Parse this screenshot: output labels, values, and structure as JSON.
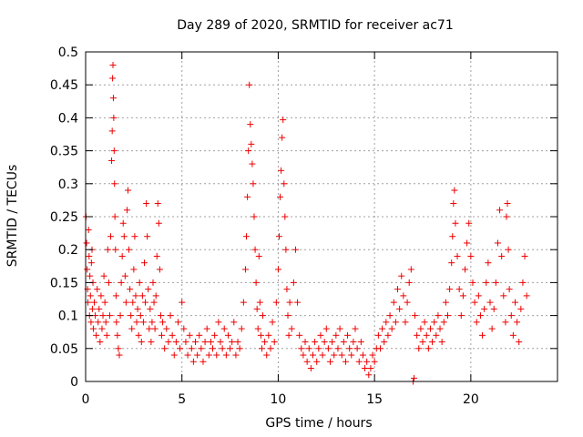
{
  "chart_data": {
    "type": "scatter",
    "title": "Day 289 of 2020, SRMTID for receiver ac71",
    "xlabel": "GPS time / hours",
    "ylabel": "SRMTID / TECUs",
    "xlim": [
      0,
      24.5
    ],
    "ylim": [
      0,
      0.5
    ],
    "xticks": [
      0,
      5,
      10,
      15,
      20
    ],
    "xtick_labels": [
      "0",
      "5",
      "10",
      "15",
      "20"
    ],
    "yticks": [
      0,
      0.05,
      0.1,
      0.15,
      0.2,
      0.25,
      0.3,
      0.35,
      0.4,
      0.45,
      0.5
    ],
    "ytick_labels": [
      "0",
      "0.05",
      "0.1",
      "0.15",
      "0.2",
      "0.25",
      "0.3",
      "0.35",
      "0.4",
      "0.45",
      "0.5"
    ],
    "grid": true,
    "marker": "plus",
    "color": "#ee0000",
    "series": [
      {
        "name": "SRMTID",
        "points": [
          [
            0.02,
            0.25
          ],
          [
            0.05,
            0.21
          ],
          [
            0.08,
            0.17
          ],
          [
            0.1,
            0.14
          ],
          [
            0.12,
            0.12
          ],
          [
            0.15,
            0.23
          ],
          [
            0.18,
            0.19
          ],
          [
            0.2,
            0.1
          ],
          [
            0.22,
            0.16
          ],
          [
            0.25,
            0.13
          ],
          [
            0.28,
            0.09
          ],
          [
            0.3,
            0.18
          ],
          [
            0.33,
            0.2
          ],
          [
            0.35,
            0.11
          ],
          [
            0.38,
            0.15
          ],
          [
            0.4,
            0.08
          ],
          [
            0.45,
            0.12
          ],
          [
            0.5,
            0.1
          ],
          [
            0.55,
            0.07
          ],
          [
            0.6,
            0.14
          ],
          [
            0.65,
            0.09
          ],
          [
            0.7,
            0.11
          ],
          [
            0.75,
            0.06
          ],
          [
            0.8,
            0.13
          ],
          [
            0.85,
            0.08
          ],
          [
            0.9,
            0.1
          ],
          [
            0.95,
            0.16
          ],
          [
            1.0,
            0.12
          ],
          [
            1.05,
            0.09
          ],
          [
            1.1,
            0.07
          ],
          [
            1.15,
            0.2
          ],
          [
            1.2,
            0.15
          ],
          [
            1.25,
            0.1
          ],
          [
            1.3,
            0.22
          ],
          [
            1.35,
            0.335
          ],
          [
            1.38,
            0.38
          ],
          [
            1.4,
            0.46
          ],
          [
            1.42,
            0.48
          ],
          [
            1.44,
            0.43
          ],
          [
            1.46,
            0.4
          ],
          [
            1.48,
            0.35
          ],
          [
            1.5,
            0.3
          ],
          [
            1.52,
            0.25
          ],
          [
            1.55,
            0.2
          ],
          [
            1.58,
            0.13
          ],
          [
            1.6,
            0.09
          ],
          [
            1.65,
            0.07
          ],
          [
            1.7,
            0.05
          ],
          [
            1.75,
            0.04
          ],
          [
            1.8,
            0.1
          ],
          [
            1.85,
            0.15
          ],
          [
            1.9,
            0.19
          ],
          [
            1.95,
            0.24
          ],
          [
            2.0,
            0.22
          ],
          [
            2.05,
            0.16
          ],
          [
            2.1,
            0.12
          ],
          [
            2.15,
            0.26
          ],
          [
            2.2,
            0.29
          ],
          [
            2.25,
            0.2
          ],
          [
            2.3,
            0.14
          ],
          [
            2.35,
            0.1
          ],
          [
            2.4,
            0.08
          ],
          [
            2.45,
            0.12
          ],
          [
            2.5,
            0.17
          ],
          [
            2.55,
            0.22
          ],
          [
            2.6,
            0.13
          ],
          [
            2.65,
            0.09
          ],
          [
            2.7,
            0.11
          ],
          [
            2.75,
            0.07
          ],
          [
            2.8,
            0.15
          ],
          [
            2.85,
            0.1
          ],
          [
            2.9,
            0.06
          ],
          [
            2.95,
            0.13
          ],
          [
            3.0,
            0.09
          ],
          [
            3.05,
            0.18
          ],
          [
            3.1,
            0.12
          ],
          [
            3.15,
            0.27
          ],
          [
            3.2,
            0.22
          ],
          [
            3.25,
            0.14
          ],
          [
            3.3,
            0.08
          ],
          [
            3.35,
            0.11
          ],
          [
            3.4,
            0.06
          ],
          [
            3.45,
            0.09
          ],
          [
            3.5,
            0.15
          ],
          [
            3.55,
            0.12
          ],
          [
            3.6,
            0.08
          ],
          [
            3.65,
            0.13
          ],
          [
            3.7,
            0.19
          ],
          [
            3.75,
            0.27
          ],
          [
            3.8,
            0.24
          ],
          [
            3.85,
            0.17
          ],
          [
            3.9,
            0.1
          ],
          [
            3.95,
            0.07
          ],
          [
            4.0,
            0.09
          ],
          [
            4.1,
            0.05
          ],
          [
            4.2,
            0.08
          ],
          [
            4.3,
            0.06
          ],
          [
            4.4,
            0.1
          ],
          [
            4.5,
            0.07
          ],
          [
            4.6,
            0.04
          ],
          [
            4.7,
            0.06
          ],
          [
            4.8,
            0.09
          ],
          [
            4.9,
            0.05
          ],
          [
            5.0,
            0.12
          ],
          [
            5.1,
            0.08
          ],
          [
            5.2,
            0.06
          ],
          [
            5.3,
            0.04
          ],
          [
            5.4,
            0.07
          ],
          [
            5.5,
            0.05
          ],
          [
            5.6,
            0.03
          ],
          [
            5.7,
            0.06
          ],
          [
            5.8,
            0.04
          ],
          [
            5.9,
            0.07
          ],
          [
            6.0,
            0.05
          ],
          [
            6.1,
            0.03
          ],
          [
            6.2,
            0.06
          ],
          [
            6.3,
            0.08
          ],
          [
            6.4,
            0.04
          ],
          [
            6.5,
            0.06
          ],
          [
            6.6,
            0.05
          ],
          [
            6.7,
            0.07
          ],
          [
            6.8,
            0.04
          ],
          [
            6.9,
            0.09
          ],
          [
            7.0,
            0.06
          ],
          [
            7.1,
            0.05
          ],
          [
            7.2,
            0.08
          ],
          [
            7.3,
            0.04
          ],
          [
            7.4,
            0.07
          ],
          [
            7.5,
            0.05
          ],
          [
            7.6,
            0.06
          ],
          [
            7.7,
            0.09
          ],
          [
            7.8,
            0.04
          ],
          [
            7.9,
            0.06
          ],
          [
            8.0,
            0.05
          ],
          [
            8.1,
            0.08
          ],
          [
            8.2,
            0.12
          ],
          [
            8.3,
            0.17
          ],
          [
            8.35,
            0.22
          ],
          [
            8.4,
            0.28
          ],
          [
            8.45,
            0.35
          ],
          [
            8.5,
            0.45
          ],
          [
            8.55,
            0.39
          ],
          [
            8.6,
            0.36
          ],
          [
            8.65,
            0.33
          ],
          [
            8.7,
            0.3
          ],
          [
            8.75,
            0.25
          ],
          [
            8.8,
            0.2
          ],
          [
            8.85,
            0.15
          ],
          [
            8.9,
            0.11
          ],
          [
            8.95,
            0.08
          ],
          [
            9.0,
            0.19
          ],
          [
            9.05,
            0.12
          ],
          [
            9.1,
            0.07
          ],
          [
            9.15,
            0.05
          ],
          [
            9.2,
            0.1
          ],
          [
            9.3,
            0.06
          ],
          [
            9.4,
            0.04
          ],
          [
            9.5,
            0.07
          ],
          [
            9.6,
            0.05
          ],
          [
            9.7,
            0.09
          ],
          [
            9.8,
            0.06
          ],
          [
            9.9,
            0.12
          ],
          [
            10.0,
            0.17
          ],
          [
            10.05,
            0.22
          ],
          [
            10.1,
            0.28
          ],
          [
            10.15,
            0.32
          ],
          [
            10.2,
            0.37
          ],
          [
            10.25,
            0.397
          ],
          [
            10.3,
            0.3
          ],
          [
            10.35,
            0.25
          ],
          [
            10.4,
            0.2
          ],
          [
            10.45,
            0.14
          ],
          [
            10.5,
            0.1
          ],
          [
            10.55,
            0.07
          ],
          [
            10.6,
            0.12
          ],
          [
            10.7,
            0.08
          ],
          [
            10.8,
            0.15
          ],
          [
            10.9,
            0.2
          ],
          [
            11.0,
            0.12
          ],
          [
            11.1,
            0.07
          ],
          [
            11.2,
            0.05
          ],
          [
            11.3,
            0.04
          ],
          [
            11.4,
            0.06
          ],
          [
            11.5,
            0.03
          ],
          [
            11.6,
            0.05
          ],
          [
            11.7,
            0.02
          ],
          [
            11.8,
            0.04
          ],
          [
            11.9,
            0.06
          ],
          [
            12.0,
            0.03
          ],
          [
            12.1,
            0.05
          ],
          [
            12.2,
            0.07
          ],
          [
            12.3,
            0.04
          ],
          [
            12.4,
            0.06
          ],
          [
            12.5,
            0.08
          ],
          [
            12.6,
            0.05
          ],
          [
            12.7,
            0.03
          ],
          [
            12.8,
            0.06
          ],
          [
            12.9,
            0.04
          ],
          [
            13.0,
            0.07
          ],
          [
            13.1,
            0.05
          ],
          [
            13.2,
            0.08
          ],
          [
            13.3,
            0.04
          ],
          [
            13.4,
            0.06
          ],
          [
            13.5,
            0.03
          ],
          [
            13.6,
            0.07
          ],
          [
            13.7,
            0.05
          ],
          [
            13.8,
            0.04
          ],
          [
            13.9,
            0.06
          ],
          [
            14.0,
            0.08
          ],
          [
            14.1,
            0.05
          ],
          [
            14.2,
            0.03
          ],
          [
            14.3,
            0.06
          ],
          [
            14.4,
            0.04
          ],
          [
            14.5,
            0.02
          ],
          [
            14.6,
            0.03
          ],
          [
            14.7,
            0.01
          ],
          [
            14.8,
            0.02
          ],
          [
            14.9,
            0.04
          ],
          [
            15.0,
            0.03
          ],
          [
            15.1,
            0.05
          ],
          [
            15.2,
            0.07
          ],
          [
            15.3,
            0.05
          ],
          [
            15.4,
            0.08
          ],
          [
            15.5,
            0.06
          ],
          [
            15.6,
            0.09
          ],
          [
            15.7,
            0.07
          ],
          [
            15.8,
            0.1
          ],
          [
            15.9,
            0.08
          ],
          [
            16.0,
            0.12
          ],
          [
            16.1,
            0.09
          ],
          [
            16.2,
            0.14
          ],
          [
            16.3,
            0.11
          ],
          [
            16.4,
            0.16
          ],
          [
            16.5,
            0.13
          ],
          [
            16.6,
            0.09
          ],
          [
            16.7,
            0.12
          ],
          [
            16.8,
            0.15
          ],
          [
            16.9,
            0.17
          ],
          [
            17.0,
            0.0
          ],
          [
            17.05,
            0.005
          ],
          [
            17.1,
            0.1
          ],
          [
            17.2,
            0.07
          ],
          [
            17.3,
            0.05
          ],
          [
            17.4,
            0.08
          ],
          [
            17.5,
            0.06
          ],
          [
            17.6,
            0.09
          ],
          [
            17.7,
            0.07
          ],
          [
            17.8,
            0.05
          ],
          [
            17.9,
            0.08
          ],
          [
            18.0,
            0.06
          ],
          [
            18.1,
            0.09
          ],
          [
            18.2,
            0.07
          ],
          [
            18.3,
            0.1
          ],
          [
            18.4,
            0.08
          ],
          [
            18.5,
            0.06
          ],
          [
            18.6,
            0.09
          ],
          [
            18.7,
            0.12
          ],
          [
            18.8,
            0.1
          ],
          [
            18.9,
            0.14
          ],
          [
            19.0,
            0.18
          ],
          [
            19.05,
            0.22
          ],
          [
            19.1,
            0.27
          ],
          [
            19.15,
            0.29
          ],
          [
            19.2,
            0.24
          ],
          [
            19.3,
            0.19
          ],
          [
            19.4,
            0.14
          ],
          [
            19.5,
            0.1
          ],
          [
            19.6,
            0.13
          ],
          [
            19.7,
            0.17
          ],
          [
            19.8,
            0.21
          ],
          [
            19.9,
            0.24
          ],
          [
            20.0,
            0.19
          ],
          [
            20.1,
            0.15
          ],
          [
            20.2,
            0.12
          ],
          [
            20.3,
            0.09
          ],
          [
            20.4,
            0.13
          ],
          [
            20.5,
            0.1
          ],
          [
            20.6,
            0.07
          ],
          [
            20.7,
            0.11
          ],
          [
            20.8,
            0.15
          ],
          [
            20.9,
            0.18
          ],
          [
            21.0,
            0.12
          ],
          [
            21.1,
            0.08
          ],
          [
            21.2,
            0.11
          ],
          [
            21.3,
            0.15
          ],
          [
            21.4,
            0.21
          ],
          [
            21.5,
            0.26
          ],
          [
            21.6,
            0.19
          ],
          [
            21.7,
            0.13
          ],
          [
            21.8,
            0.09
          ],
          [
            21.85,
            0.25
          ],
          [
            21.9,
            0.27
          ],
          [
            21.95,
            0.2
          ],
          [
            22.0,
            0.14
          ],
          [
            22.1,
            0.1
          ],
          [
            22.2,
            0.07
          ],
          [
            22.3,
            0.12
          ],
          [
            22.4,
            0.09
          ],
          [
            22.5,
            0.06
          ],
          [
            22.6,
            0.11
          ],
          [
            22.7,
            0.15
          ],
          [
            22.8,
            0.19
          ],
          [
            22.9,
            0.13
          ]
        ]
      }
    ]
  }
}
